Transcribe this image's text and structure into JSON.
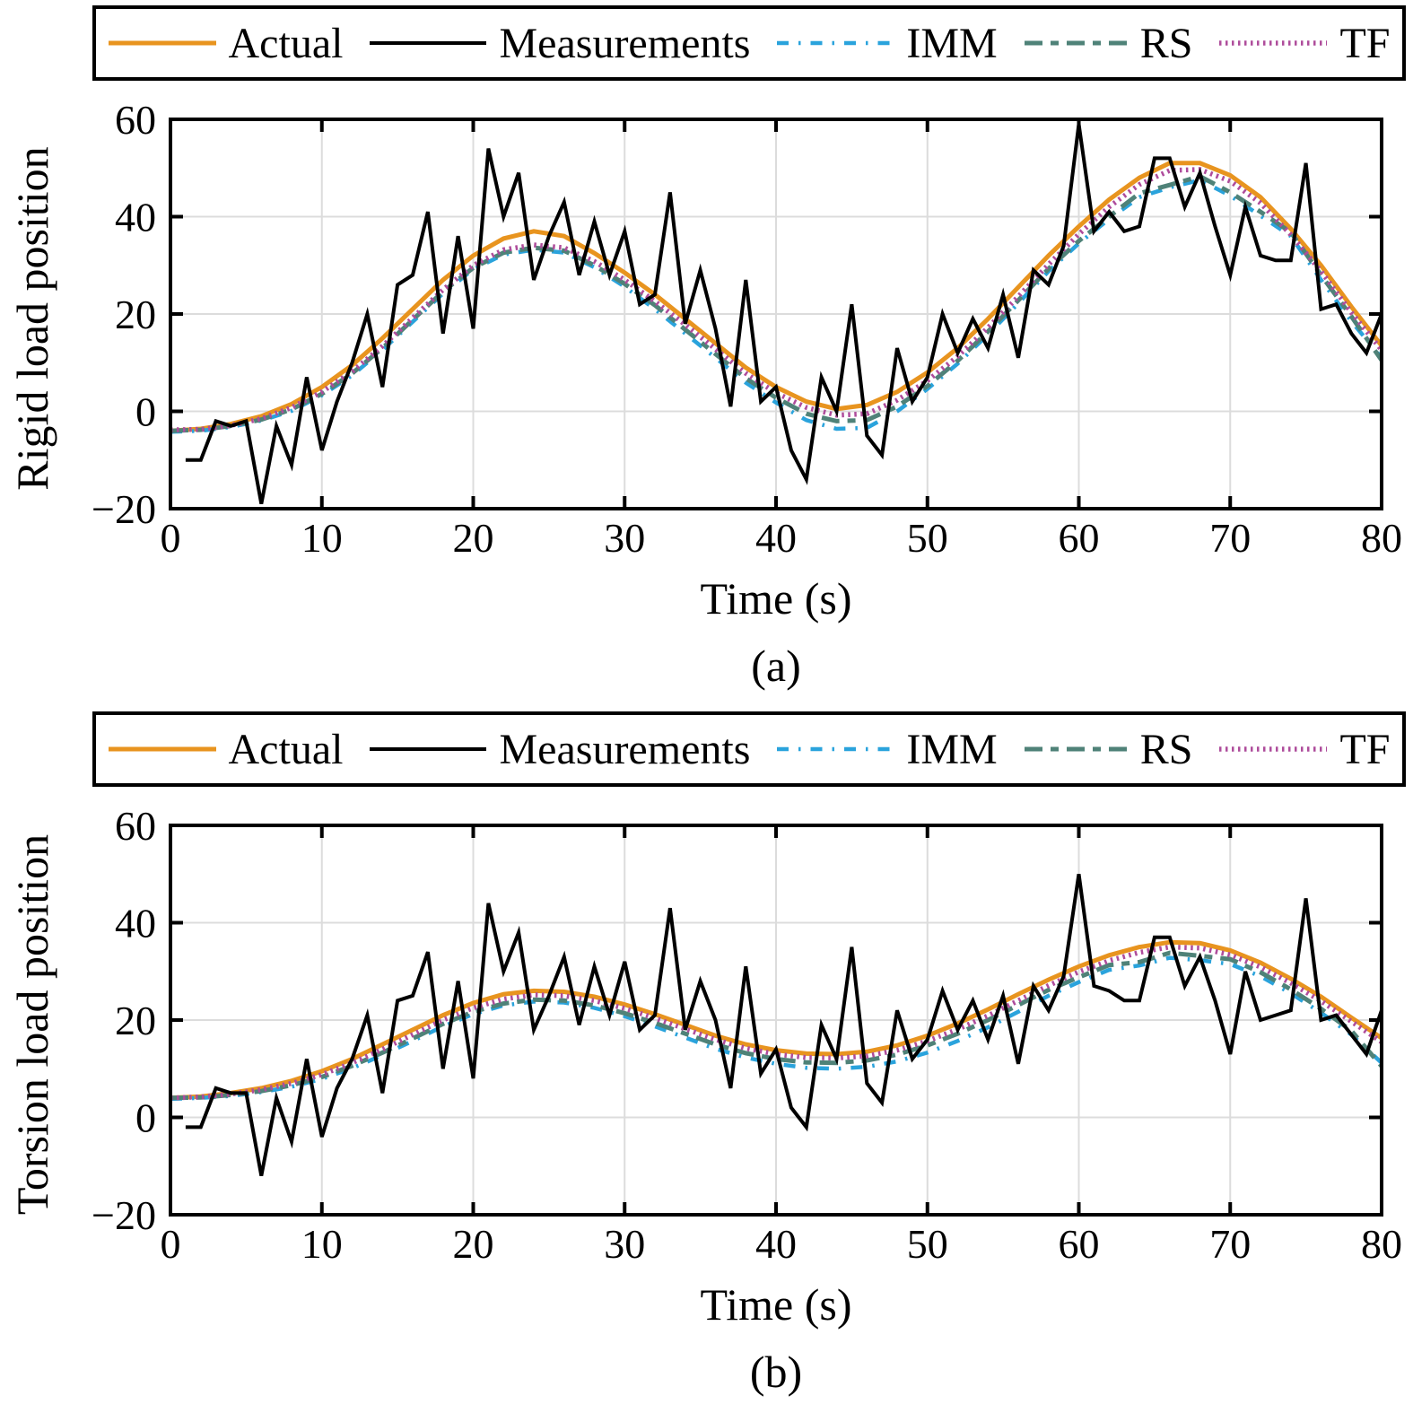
{
  "chart_data": [
    {
      "id": "a",
      "type": "line",
      "title": "(a)",
      "xlabel": "Time (s)",
      "ylabel": "Rigid load position",
      "xlim": [
        0,
        80
      ],
      "ylim": [
        -20,
        60
      ],
      "xticks": [
        0,
        10,
        20,
        30,
        40,
        50,
        60,
        70,
        80
      ],
      "xtick_labels": [
        "0",
        "10",
        "20",
        "30",
        "40",
        "50",
        "60",
        "70",
        "80"
      ],
      "yticks": [
        -20,
        0,
        20,
        40,
        60
      ],
      "ytick_labels": [
        "−20",
        "0",
        "20",
        "40",
        "60"
      ],
      "grid": true,
      "legend_position": "top",
      "series": [
        {
          "name": "Actual",
          "color": "#E8941F",
          "dash": "",
          "width": 5,
          "zorder": 1,
          "x_start": 0,
          "x_step": 2,
          "values": [
            -4,
            -3.6,
            -2.6,
            -1,
            1.5,
            5,
            9.5,
            15,
            21,
            27,
            32,
            35.5,
            37,
            36,
            32.5,
            28.5,
            24,
            19,
            14,
            9,
            5,
            2,
            0.5,
            1.3,
            4,
            8,
            13,
            19,
            25.5,
            32,
            38,
            43.5,
            48,
            51,
            51,
            48.5,
            44,
            37.5,
            30,
            21.5,
            13.5
          ]
        },
        {
          "name": "Measurements",
          "color": "#000000",
          "dash": "",
          "width": 4,
          "zorder": 5,
          "x_start": 1,
          "x_step": 1,
          "values": [
            -10,
            -10,
            -2,
            -3,
            -2,
            -19,
            -3,
            -11,
            7,
            -8,
            2,
            10,
            20,
            5,
            26,
            28,
            41,
            16,
            36,
            17,
            54,
            40,
            49,
            27,
            36,
            43,
            28,
            39,
            28,
            37,
            22,
            24,
            45,
            18,
            29,
            17,
            1,
            27,
            2,
            5,
            -8,
            -14,
            7,
            0,
            22,
            -5,
            -9,
            13,
            2,
            7,
            20,
            12,
            19,
            13,
            24,
            11,
            29,
            26,
            34,
            59,
            37,
            41,
            37,
            38,
            52,
            52,
            42,
            49,
            38,
            28,
            42,
            32,
            31,
            31,
            51,
            21,
            22,
            16,
            12,
            20
          ]
        },
        {
          "name": "IMM",
          "color": "#2AA3DC",
          "dash": "13 11 2.5 11",
          "width": 4.5,
          "zorder": 2,
          "x_start": 0,
          "x_step": 2,
          "values": [
            -4.2,
            -4,
            -3.2,
            -1.9,
            0.1,
            3.3,
            7.4,
            12.6,
            18.4,
            24.2,
            29.2,
            32.2,
            33.2,
            32.6,
            29.6,
            25.6,
            21,
            16,
            11,
            5.9,
            1.8,
            -1.8,
            -3.6,
            -3.4,
            0,
            4.6,
            9.8,
            15.8,
            22.2,
            28.8,
            34.5,
            39.5,
            44,
            46,
            47.5,
            44.3,
            40.2,
            36,
            27,
            18.5,
            11
          ]
        },
        {
          "name": "RS",
          "color": "#4F8278",
          "dash": "20 9 9 9",
          "width": 5,
          "zorder": 3,
          "x_start": 0,
          "x_step": 2,
          "values": [
            -4,
            -3.8,
            -3,
            -1.7,
            0.4,
            3.6,
            7.8,
            13,
            18.8,
            24.6,
            29.5,
            32.6,
            33.6,
            33,
            30,
            26.2,
            21.8,
            16.8,
            11.8,
            6.8,
            2.8,
            -0.5,
            -2,
            -1.8,
            1,
            5.2,
            10.4,
            16.4,
            22.8,
            29.3,
            35,
            40,
            44.8,
            46.5,
            48.3,
            45,
            41,
            36.8,
            28,
            19.5,
            10.5
          ]
        },
        {
          "name": "TF",
          "color": "#AE4C9B",
          "dash": "2.5 4.5",
          "width": 5.5,
          "zorder": 4,
          "x_start": 0,
          "x_step": 2,
          "values": [
            -3.8,
            -3.7,
            -2.9,
            -1.5,
            0.8,
            4,
            8.2,
            13.4,
            19.2,
            25,
            30,
            33.2,
            34.2,
            33.6,
            30.8,
            27,
            22.6,
            17.8,
            12.8,
            7.8,
            3.8,
            0.8,
            -0.8,
            -0.5,
            2.3,
            6.3,
            11.3,
            17.2,
            23.6,
            30.2,
            36.4,
            42,
            46.6,
            49.5,
            49.7,
            47.3,
            42.8,
            36.3,
            28.8,
            20.3,
            12.6
          ]
        }
      ]
    },
    {
      "id": "b",
      "type": "line",
      "title": "(b)",
      "xlabel": "Time (s)",
      "ylabel": "Torsion load position",
      "xlim": [
        0,
        80
      ],
      "ylim": [
        -20,
        60
      ],
      "xticks": [
        0,
        10,
        20,
        30,
        40,
        50,
        60,
        70,
        80
      ],
      "xtick_labels": [
        "0",
        "10",
        "20",
        "30",
        "40",
        "50",
        "60",
        "70",
        "80"
      ],
      "yticks": [
        -20,
        0,
        20,
        40,
        60
      ],
      "ytick_labels": [
        "−20",
        "0",
        "20",
        "40",
        "60"
      ],
      "grid": true,
      "legend_position": "top",
      "series": [
        {
          "name": "Actual",
          "color": "#E8941F",
          "dash": "",
          "width": 5,
          "zorder": 1,
          "x_start": 0,
          "x_step": 2,
          "values": [
            4,
            4.3,
            5,
            6,
            7.5,
            9.5,
            12,
            15,
            18,
            21,
            23.5,
            25.3,
            26,
            25.8,
            24.8,
            23.2,
            21.2,
            19,
            16.8,
            15,
            13.8,
            13.1,
            13,
            13.5,
            14.8,
            16.8,
            19.3,
            22.2,
            25.3,
            28.3,
            31,
            33.3,
            35,
            36,
            35.8,
            34.3,
            31.8,
            28.5,
            24.8,
            20.5,
            16.3
          ]
        },
        {
          "name": "Measurements",
          "color": "#000000",
          "dash": "",
          "width": 4,
          "zorder": 5,
          "x_start": 1,
          "x_step": 1,
          "values": [
            -2,
            -2,
            6,
            5,
            5,
            -12,
            4,
            -5,
            12,
            -4,
            6,
            12,
            21,
            5,
            24,
            25,
            34,
            10,
            28,
            8,
            44,
            30,
            38,
            18,
            25,
            33,
            19,
            31,
            21,
            32,
            18,
            21,
            43,
            18,
            28,
            20,
            6,
            31,
            9,
            14,
            2,
            -2,
            19,
            12,
            35,
            7,
            3,
            22,
            12,
            16,
            26,
            18,
            24,
            16,
            25,
            11,
            27,
            22,
            29,
            50,
            27,
            26,
            24,
            24,
            37,
            37,
            27,
            33,
            24,
            13,
            30,
            20,
            21,
            22,
            45,
            20,
            21,
            17,
            13,
            22
          ]
        },
        {
          "name": "IMM",
          "color": "#2AA3DC",
          "dash": "13 11 2.5 11",
          "width": 4.5,
          "zorder": 2,
          "x_start": 0,
          "x_step": 2,
          "values": [
            3.8,
            4,
            4.4,
            5.2,
            6.3,
            7.9,
            10.1,
            12.8,
            15.7,
            18.7,
            21.2,
            23,
            23.8,
            23.6,
            22.5,
            20.8,
            18.7,
            16.4,
            14.1,
            12.3,
            11,
            10.2,
            10,
            10.4,
            11.5,
            13.3,
            15.7,
            18.5,
            21.7,
            25,
            27.8,
            30.3,
            31.2,
            32.8,
            32.3,
            31.5,
            29,
            25.5,
            21.5,
            17,
            11.2
          ]
        },
        {
          "name": "RS",
          "color": "#4F8278",
          "dash": "20 9 9 9",
          "width": 5,
          "zorder": 3,
          "x_start": 0,
          "x_step": 2,
          "values": [
            4,
            4.1,
            4.6,
            5.4,
            6.6,
            8.3,
            10.6,
            13.3,
            16.2,
            19.2,
            21.7,
            23.4,
            24.2,
            24,
            23,
            21.4,
            19.4,
            17.2,
            15,
            13.2,
            12,
            11.3,
            11.2,
            11.7,
            12.9,
            14.8,
            17.2,
            20,
            23.1,
            26.2,
            28.8,
            31.3,
            31.9,
            33.8,
            33.2,
            32.5,
            29.8,
            26.3,
            22.3,
            17.8,
            10.5
          ]
        },
        {
          "name": "TF",
          "color": "#AE4C9B",
          "dash": "2.5 4.5",
          "width": 5.5,
          "zorder": 4,
          "x_start": 0,
          "x_step": 2,
          "values": [
            4,
            4.2,
            4.8,
            5.7,
            7,
            8.8,
            11.2,
            14,
            17,
            20,
            22.5,
            24.3,
            25.2,
            25,
            24,
            22.4,
            20.4,
            18.2,
            16,
            14.2,
            13,
            12.3,
            12.2,
            12.6,
            13.8,
            15.7,
            18.1,
            20.9,
            24,
            27.1,
            29.9,
            32.2,
            33.9,
            35,
            34.8,
            33.4,
            30.9,
            27.6,
            23.9,
            19.7,
            15.5
          ]
        }
      ]
    }
  ],
  "style": {
    "grid_color": "#DCDCDC",
    "frame_color": "#000000",
    "background": "#ffffff"
  }
}
